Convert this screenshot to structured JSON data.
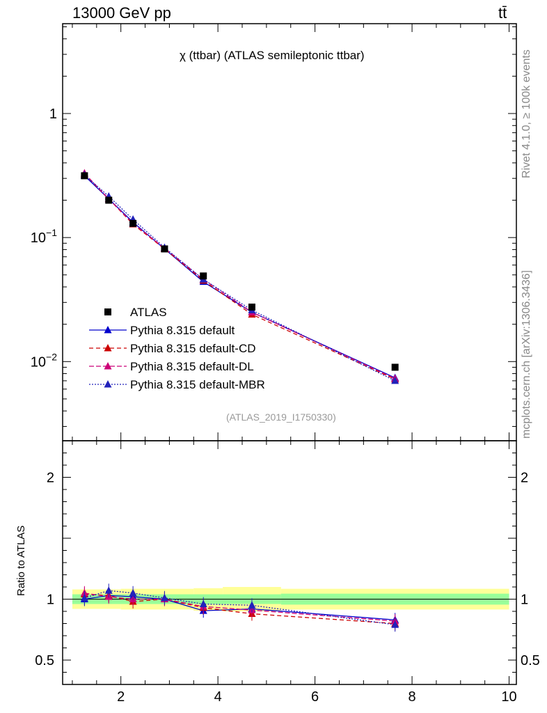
{
  "header": {
    "left": "13000 GeV pp",
    "right": "tt̄"
  },
  "side": {
    "rivet": "Rivet 4.1.0, ≥ 100k events",
    "mcplots": "mcplots.cern.ch [arXiv:1306.3436]"
  },
  "chart_data": {
    "type": "line",
    "title": "χ (ttbar) (ATLAS semileptonic ttbar)",
    "analysis_id": "(ATLAS_2019_I1750330)",
    "x": [
      1.25,
      1.75,
      2.25,
      2.9,
      3.7,
      4.7,
      7.65
    ],
    "xlim": [
      0.8,
      10.15
    ],
    "xticks": [
      2,
      4,
      6,
      8,
      10
    ],
    "main": {
      "yscale": "log",
      "ylim": [
        0.0023,
        5.3
      ],
      "ytick_labels": [
        {
          "v": 1,
          "base": "1",
          "exp": ""
        },
        {
          "v": 0.1,
          "base": "10",
          "exp": "−1"
        },
        {
          "v": 0.01,
          "base": "10",
          "exp": "−2"
        }
      ]
    },
    "ratio": {
      "ylabel": "Ratio to ATLAS",
      "ylim": [
        0.3,
        2.3
      ],
      "ytick_labels": [
        "2",
        "1",
        "0.5"
      ],
      "ytick_values": [
        2,
        1,
        0.5
      ],
      "green_band": [
        {
          "x0": 1.0,
          "x1": 5.3,
          "lo": 0.96,
          "hi": 1.04
        },
        {
          "x0": 5.3,
          "x1": 10.0,
          "lo": 0.955,
          "hi": 1.045
        }
      ],
      "yellow_band": [
        {
          "x0": 1.0,
          "x1": 2.0,
          "lo": 0.92,
          "hi": 1.08
        },
        {
          "x0": 2.0,
          "x1": 3.5,
          "lo": 0.915,
          "hi": 1.085
        },
        {
          "x0": 3.5,
          "x1": 4.1,
          "lo": 0.905,
          "hi": 1.09
        },
        {
          "x0": 4.1,
          "x1": 5.3,
          "lo": 0.9,
          "hi": 1.1
        },
        {
          "x0": 5.3,
          "x1": 10.0,
          "lo": 0.915,
          "hi": 1.085
        }
      ]
    },
    "data": {
      "name": "ATLAS",
      "color": "#000000",
      "values": [
        0.315,
        0.2,
        0.13,
        0.081,
        0.049,
        0.0275,
        0.009
      ]
    },
    "series": [
      {
        "name": "Pythia 8.315 default",
        "color": "#0000cc",
        "dash": "",
        "values": [
          0.315,
          0.205,
          0.133,
          0.081,
          0.044,
          0.025,
          0.0074
        ],
        "ratio": [
          1.0,
          1.03,
          1.02,
          1.0,
          0.905,
          0.92,
          0.83
        ]
      },
      {
        "name": "Pythia 8.315 default-CD",
        "color": "#cc0000",
        "dash": "6,4",
        "values": [
          0.325,
          0.205,
          0.128,
          0.081,
          0.045,
          0.024,
          0.0072
        ],
        "ratio": [
          1.04,
          1.03,
          0.98,
          1.0,
          0.93,
          0.88,
          0.8
        ]
      },
      {
        "name": "Pythia 8.315 default-DL",
        "color": "#cc0077",
        "dash": "7,3",
        "values": [
          0.33,
          0.205,
          0.13,
          0.082,
          0.046,
          0.025,
          0.0073
        ],
        "ratio": [
          1.05,
          1.02,
          1.0,
          1.0,
          0.94,
          0.91,
          0.82
        ]
      },
      {
        "name": "Pythia 8.315 default-MBR",
        "color": "#2222bb",
        "dash": "2,2",
        "values": [
          0.32,
          0.215,
          0.14,
          0.083,
          0.046,
          0.026,
          0.007
        ],
        "ratio": [
          1.01,
          1.07,
          1.05,
          1.01,
          0.96,
          0.95,
          0.79
        ]
      }
    ]
  }
}
